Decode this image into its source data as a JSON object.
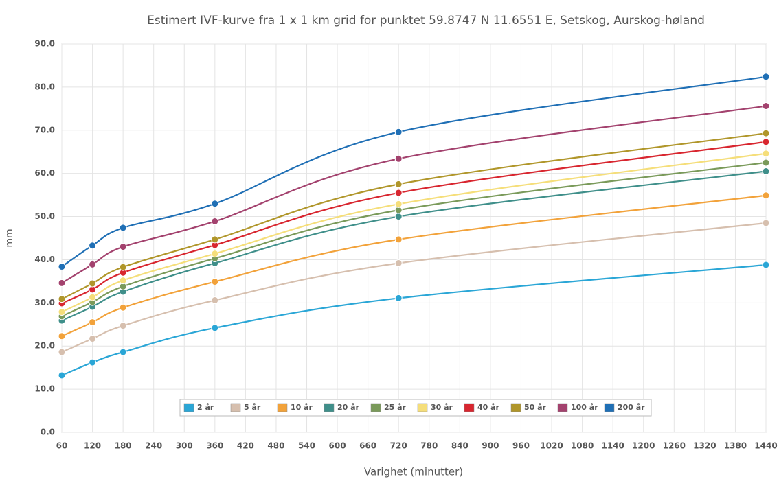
{
  "chart_data": {
    "type": "line",
    "title": "Estimert IVF-kurve fra 1 x 1 km grid for punktet 59.8747 N 11.6551 E, Setskog, Aurskog-høland",
    "xlabel": "Varighet (minutter)",
    "ylabel": "mm",
    "x": [
      60,
      120,
      180,
      360,
      720,
      1440
    ],
    "series": [
      {
        "name": "2 år",
        "color": "#2aa6d6",
        "values": [
          13.2,
          16.2,
          18.6,
          24.2,
          31.1,
          38.8
        ]
      },
      {
        "name": "5 år",
        "color": "#d6bfae",
        "values": [
          18.6,
          21.7,
          24.7,
          30.6,
          39.2,
          48.5
        ]
      },
      {
        "name": "10 år",
        "color": "#f2a23a",
        "values": [
          22.3,
          25.5,
          28.9,
          34.9,
          44.7,
          54.9
        ]
      },
      {
        "name": "20 år",
        "color": "#3f8f8a",
        "values": [
          25.9,
          29.1,
          32.6,
          39.2,
          50.0,
          60.5
        ]
      },
      {
        "name": "25 år",
        "color": "#7a9a5a",
        "values": [
          26.9,
          30.2,
          33.8,
          40.3,
          51.5,
          62.5
        ]
      },
      {
        "name": "30 år",
        "color": "#f5de7a",
        "values": [
          27.9,
          31.3,
          35.2,
          41.4,
          52.9,
          64.6
        ]
      },
      {
        "name": "40 år",
        "color": "#d8262f",
        "values": [
          29.9,
          33.1,
          37.0,
          43.4,
          55.5,
          67.3
        ]
      },
      {
        "name": "50 år",
        "color": "#b0962a",
        "values": [
          30.9,
          34.5,
          38.3,
          44.7,
          57.5,
          69.3
        ]
      },
      {
        "name": "100 år",
        "color": "#a3426e",
        "values": [
          34.6,
          38.9,
          43.0,
          48.9,
          63.4,
          75.6
        ]
      },
      {
        "name": "200 år",
        "color": "#1f6fb5",
        "values": [
          38.4,
          43.3,
          47.4,
          53.0,
          69.6,
          82.4
        ]
      }
    ],
    "xlim": [
      60,
      1440
    ],
    "xticks": [
      60,
      120,
      180,
      240,
      300,
      360,
      420,
      480,
      540,
      600,
      660,
      720,
      780,
      840,
      900,
      960,
      1020,
      1080,
      1140,
      1200,
      1260,
      1320,
      1380,
      1440
    ],
    "ylim": [
      0,
      90
    ],
    "yticks": [
      {
        "value": 0,
        "label": "0.0"
      },
      {
        "value": 10,
        "label": "10.0"
      },
      {
        "value": 20,
        "label": "20.0"
      },
      {
        "value": 30,
        "label": "30.0"
      },
      {
        "value": 40,
        "label": "40.0"
      },
      {
        "value": 50,
        "label": "50.0"
      },
      {
        "value": 60,
        "label": "60.0"
      },
      {
        "value": 70,
        "label": "70.0"
      },
      {
        "value": 80,
        "label": "80.0"
      },
      {
        "value": 90,
        "label": "90.0"
      }
    ],
    "grid": true,
    "legend": "bottom"
  }
}
